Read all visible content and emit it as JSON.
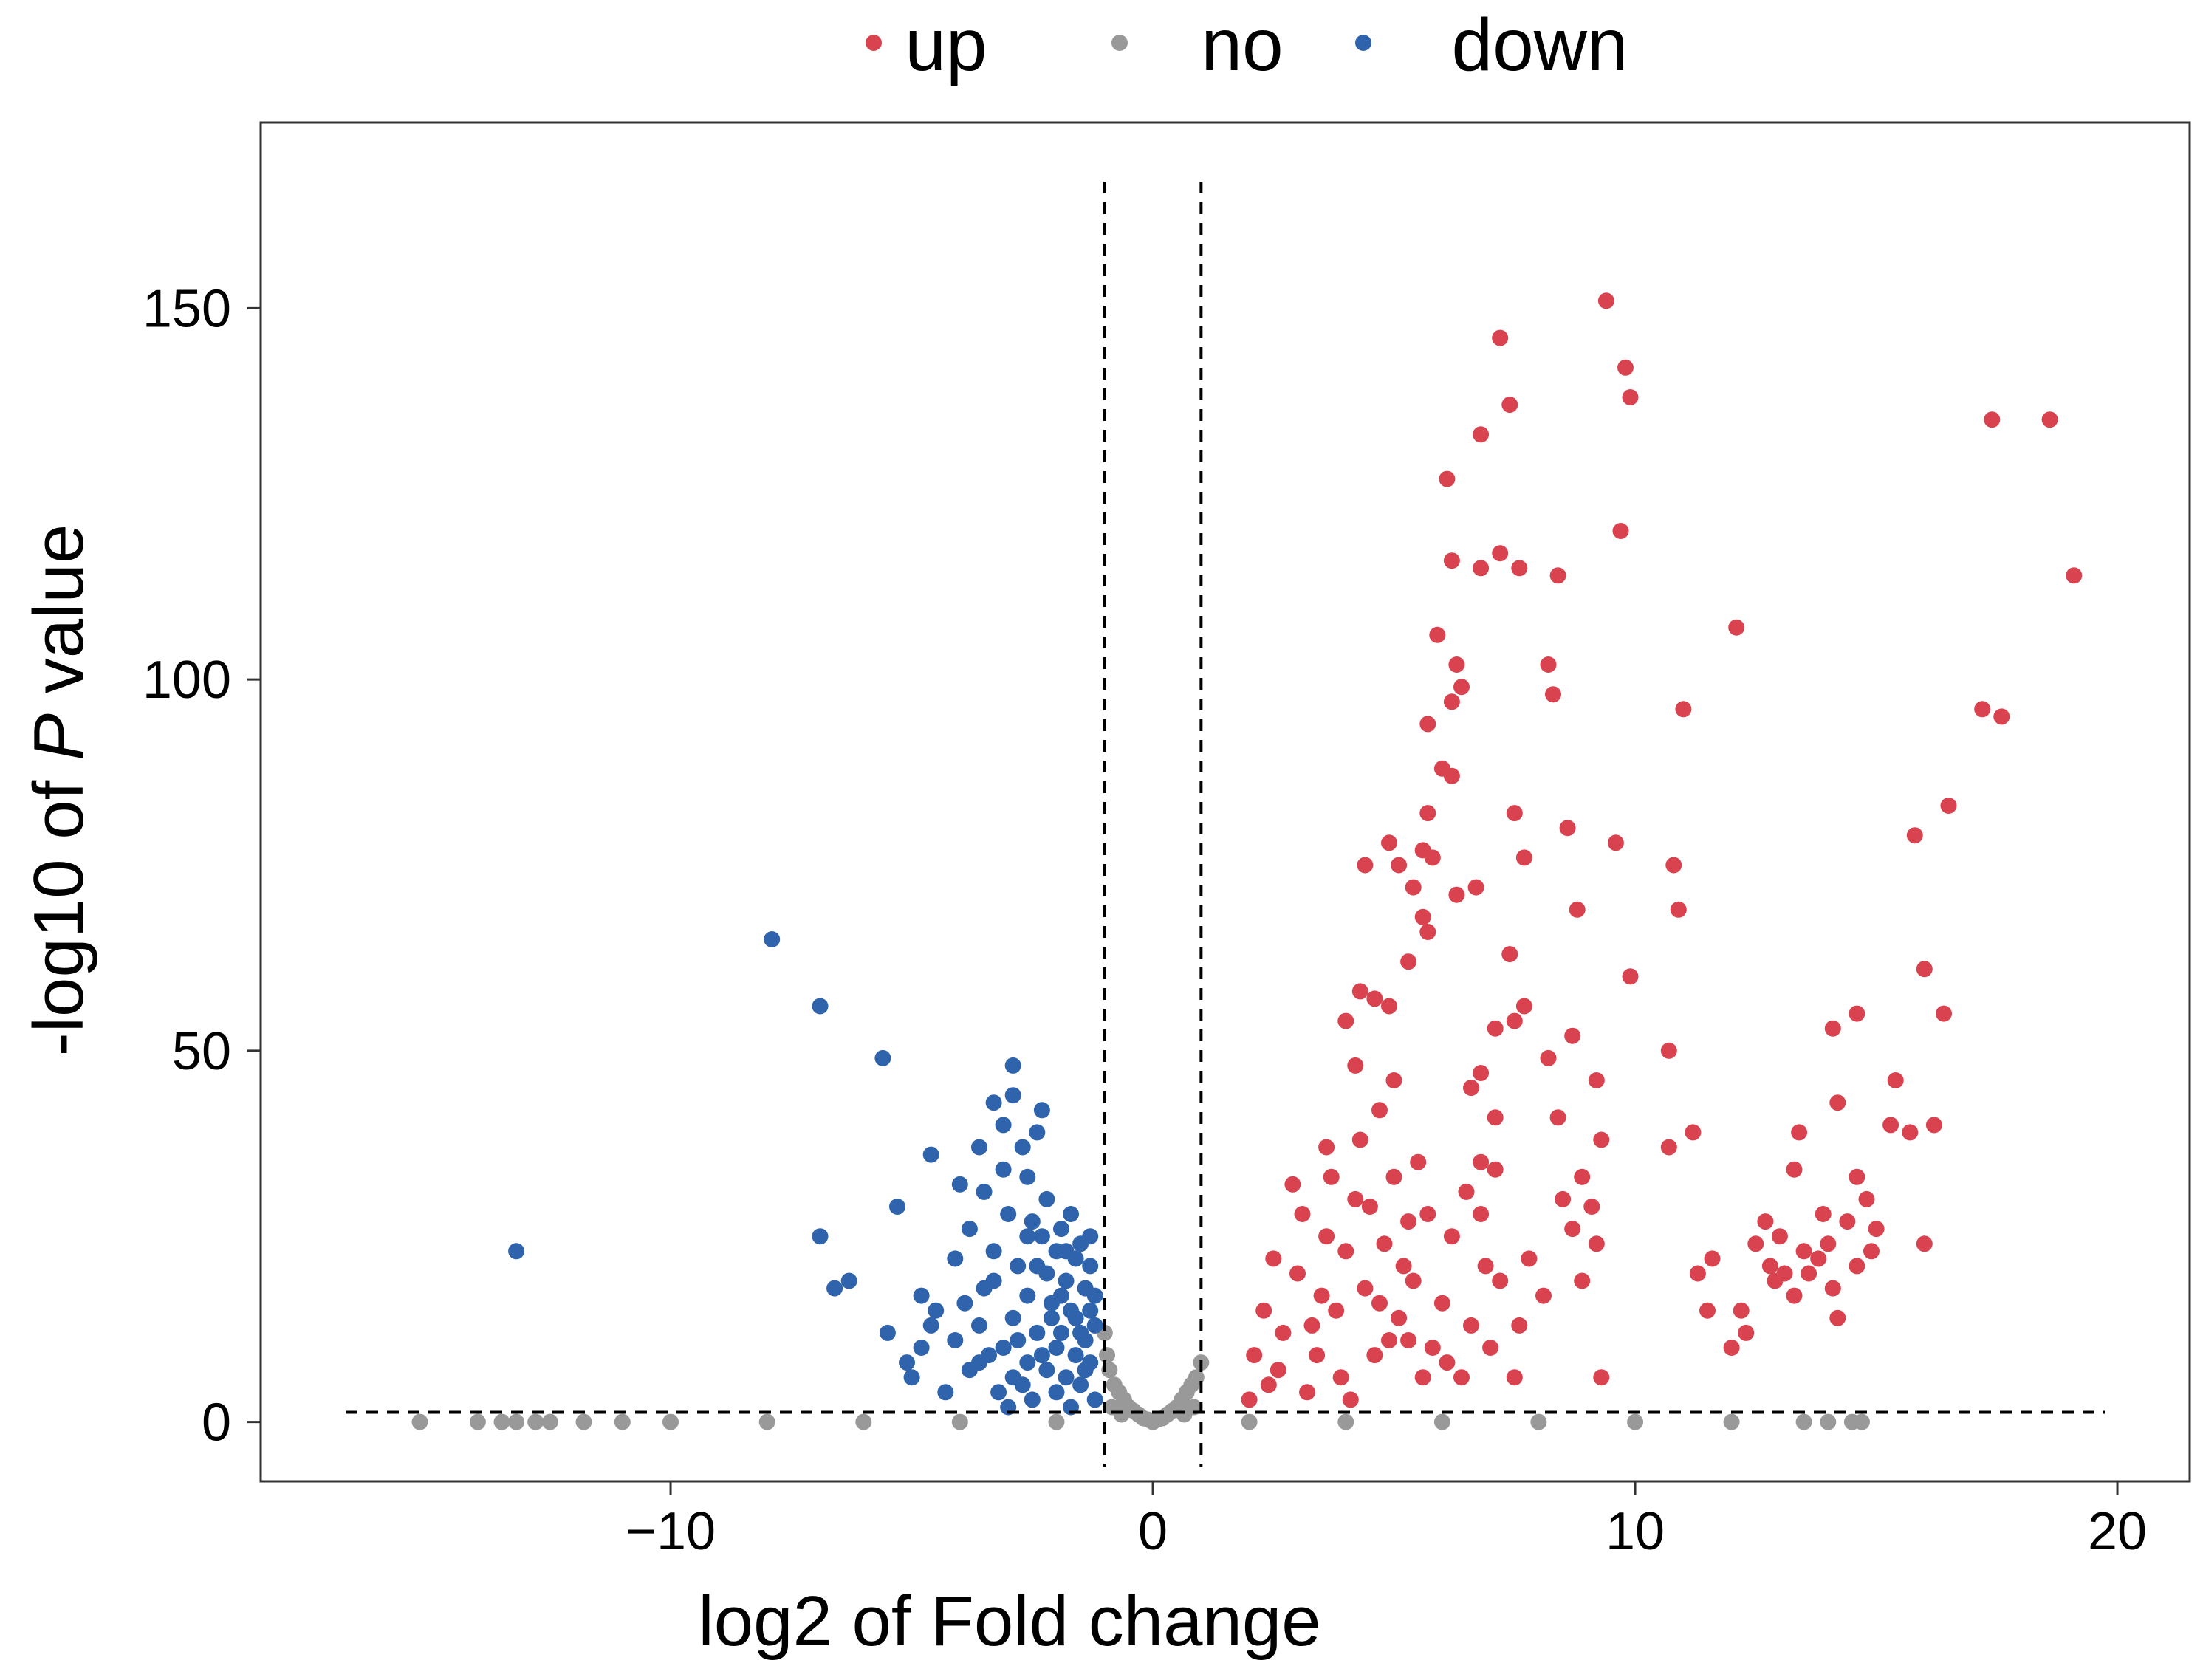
{
  "chart_data": {
    "type": "scatter",
    "xlabel": "log2 of Fold change",
    "ylabel": {
      "prefix": "-log10 of ",
      "italic": "P",
      "suffix": " value"
    },
    "xlim": [
      -18.5,
      21.5
    ],
    "ylim": [
      -8,
      175
    ],
    "x_ticks": [
      {
        "value": -10,
        "label": "−10"
      },
      {
        "value": 0,
        "label": "0"
      },
      {
        "value": 10,
        "label": "10"
      },
      {
        "value": 20,
        "label": "20"
      }
    ],
    "y_ticks": [
      {
        "value": 0,
        "label": "0"
      },
      {
        "value": 50,
        "label": "50"
      },
      {
        "value": 100,
        "label": "100"
      },
      {
        "value": 150,
        "label": "150"
      }
    ],
    "grid": false,
    "legend_position": "top",
    "thresholds": {
      "x": [
        -1,
        1
      ],
      "y": 1.3
    },
    "series": [
      {
        "name": "up",
        "color": "#d9434f",
        "points": [
          [
            9.4,
            151
          ],
          [
            7.2,
            146
          ],
          [
            9.8,
            142
          ],
          [
            9.9,
            138
          ],
          [
            7.4,
            137
          ],
          [
            17.4,
            135
          ],
          [
            18.6,
            135
          ],
          [
            6.8,
            133
          ],
          [
            6.1,
            127
          ],
          [
            9.7,
            120
          ],
          [
            7.2,
            117
          ],
          [
            6.2,
            116
          ],
          [
            6.8,
            115
          ],
          [
            7.6,
            115
          ],
          [
            8.4,
            114
          ],
          [
            19.1,
            114
          ],
          [
            12.1,
            107
          ],
          [
            5.9,
            106
          ],
          [
            6.3,
            102
          ],
          [
            8.2,
            102
          ],
          [
            6.4,
            99
          ],
          [
            8.3,
            98
          ],
          [
            6.2,
            97
          ],
          [
            11.0,
            96
          ],
          [
            17.2,
            96
          ],
          [
            17.6,
            95
          ],
          [
            5.7,
            94
          ],
          [
            6.0,
            88
          ],
          [
            6.2,
            87
          ],
          [
            16.5,
            83
          ],
          [
            5.7,
            82
          ],
          [
            7.5,
            82
          ],
          [
            8.6,
            80
          ],
          [
            15.8,
            79
          ],
          [
            4.9,
            78
          ],
          [
            9.6,
            78
          ],
          [
            5.6,
            77
          ],
          [
            5.8,
            76
          ],
          [
            7.7,
            76
          ],
          [
            4.4,
            75
          ],
          [
            5.1,
            75
          ],
          [
            10.8,
            75
          ],
          [
            5.4,
            72
          ],
          [
            6.7,
            72
          ],
          [
            6.3,
            71
          ],
          [
            10.9,
            69
          ],
          [
            8.8,
            69
          ],
          [
            5.6,
            68
          ],
          [
            5.7,
            66
          ],
          [
            7.4,
            63
          ],
          [
            5.3,
            62
          ],
          [
            16.0,
            61
          ],
          [
            9.9,
            60
          ],
          [
            4.3,
            58
          ],
          [
            4.6,
            57
          ],
          [
            7.7,
            56
          ],
          [
            4.9,
            56
          ],
          [
            16.4,
            55
          ],
          [
            14.6,
            55
          ],
          [
            7.5,
            54
          ],
          [
            4.0,
            54
          ],
          [
            7.1,
            53
          ],
          [
            14.1,
            53
          ],
          [
            8.7,
            52
          ],
          [
            10.7,
            50
          ],
          [
            8.2,
            49
          ],
          [
            4.2,
            48
          ],
          [
            6.8,
            47
          ],
          [
            5.0,
            46
          ],
          [
            15.4,
            46
          ],
          [
            9.2,
            46
          ],
          [
            6.6,
            45
          ],
          [
            14.2,
            43
          ],
          [
            4.7,
            42
          ],
          [
            7.1,
            41
          ],
          [
            8.4,
            41
          ],
          [
            15.3,
            40
          ],
          [
            16.2,
            40
          ],
          [
            11.2,
            39
          ],
          [
            15.7,
            39
          ],
          [
            13.4,
            39
          ],
          [
            9.3,
            38
          ],
          [
            10.7,
            37
          ],
          [
            3.6,
            37
          ],
          [
            5.5,
            35
          ],
          [
            6.8,
            35
          ],
          [
            13.3,
            34
          ],
          [
            7.1,
            34
          ],
          [
            8.9,
            33
          ],
          [
            14.6,
            33
          ],
          [
            2.9,
            32
          ],
          [
            6.5,
            31
          ],
          [
            8.5,
            30
          ],
          [
            14.8,
            30
          ],
          [
            9.1,
            29
          ],
          [
            4.5,
            29
          ],
          [
            6.8,
            28
          ],
          [
            13.9,
            28
          ],
          [
            5.3,
            27
          ],
          [
            12.7,
            27
          ],
          [
            14.4,
            27
          ],
          [
            8.7,
            26
          ],
          [
            15.0,
            26
          ],
          [
            13.0,
            25
          ],
          [
            14.0,
            24
          ],
          [
            9.2,
            24
          ],
          [
            12.5,
            24
          ],
          [
            16.0,
            24
          ],
          [
            13.5,
            23
          ],
          [
            14.9,
            23
          ],
          [
            11.6,
            22
          ],
          [
            13.8,
            22
          ],
          [
            14.6,
            21
          ],
          [
            12.8,
            21
          ],
          [
            13.1,
            20
          ],
          [
            11.3,
            20
          ],
          [
            13.6,
            20
          ],
          [
            8.9,
            19
          ],
          [
            12.9,
            19
          ],
          [
            14.1,
            18
          ],
          [
            13.3,
            17
          ],
          [
            12.2,
            15
          ],
          [
            11.5,
            15
          ],
          [
            14.2,
            14
          ],
          [
            12.3,
            12
          ],
          [
            12.0,
            10
          ],
          [
            9.3,
            6
          ],
          [
            7.5,
            6
          ],
          [
            2.4,
            5
          ],
          [
            3.2,
            4
          ],
          [
            4.1,
            3
          ],
          [
            5.6,
            6
          ],
          [
            6.1,
            8
          ],
          [
            3.4,
            9
          ],
          [
            4.9,
            11
          ],
          [
            2.1,
            9
          ],
          [
            2.7,
            12
          ],
          [
            3.8,
            15
          ],
          [
            4.4,
            18
          ],
          [
            5.2,
            21
          ],
          [
            6.0,
            16
          ],
          [
            6.6,
            13
          ],
          [
            7.2,
            19
          ],
          [
            7.8,
            22
          ],
          [
            8.1,
            17
          ],
          [
            2.3,
            15
          ],
          [
            3.0,
            20
          ],
          [
            3.6,
            25
          ],
          [
            4.2,
            30
          ],
          [
            4.8,
            24
          ],
          [
            5.4,
            19
          ],
          [
            6.2,
            25
          ],
          [
            6.9,
            21
          ],
          [
            2.0,
            3
          ],
          [
            2.6,
            7
          ],
          [
            3.3,
            13
          ],
          [
            3.9,
            6
          ],
          [
            4.6,
            9
          ],
          [
            5.1,
            14
          ],
          [
            5.8,
            10
          ],
          [
            6.4,
            6
          ],
          [
            7.0,
            10
          ],
          [
            7.6,
            13
          ],
          [
            3.1,
            28
          ],
          [
            3.7,
            33
          ],
          [
            4.3,
            38
          ],
          [
            5.0,
            33
          ],
          [
            5.7,
            28
          ],
          [
            2.5,
            22
          ],
          [
            3.5,
            17
          ],
          [
            4.0,
            23
          ],
          [
            4.7,
            16
          ],
          [
            5.3,
            11
          ]
        ]
      },
      {
        "name": "no",
        "color": "#999999",
        "points": [
          [
            -15.2,
            0
          ],
          [
            -14.0,
            0
          ],
          [
            -13.5,
            0
          ],
          [
            -13.2,
            0
          ],
          [
            -12.8,
            0
          ],
          [
            -12.5,
            0
          ],
          [
            -11.8,
            0
          ],
          [
            -11.0,
            0
          ],
          [
            -10.0,
            0
          ],
          [
            -8.0,
            0
          ],
          [
            -6.0,
            0
          ],
          [
            -4.0,
            0
          ],
          [
            -2.0,
            0
          ],
          [
            0,
            0
          ],
          [
            2.0,
            0
          ],
          [
            4.0,
            0
          ],
          [
            6.0,
            0
          ],
          [
            8.0,
            0
          ],
          [
            10.0,
            0
          ],
          [
            12.0,
            0
          ],
          [
            13.5,
            0
          ],
          [
            14.0,
            0
          ],
          [
            14.5,
            0
          ],
          [
            14.7,
            0
          ],
          [
            -1.0,
            12
          ],
          [
            -0.95,
            9
          ],
          [
            -0.9,
            7
          ],
          [
            -0.8,
            5
          ],
          [
            -0.7,
            4
          ],
          [
            -0.6,
            3
          ],
          [
            -0.5,
            2
          ],
          [
            -0.4,
            1.5
          ],
          [
            -0.3,
            1
          ],
          [
            -0.2,
            0.5
          ],
          [
            -0.1,
            0.3
          ],
          [
            0.1,
            0.3
          ],
          [
            0.2,
            0.5
          ],
          [
            0.3,
            1
          ],
          [
            0.4,
            1.5
          ],
          [
            0.5,
            2
          ],
          [
            0.6,
            3
          ],
          [
            0.7,
            4
          ],
          [
            0.8,
            5
          ],
          [
            0.9,
            6
          ],
          [
            1.0,
            8
          ],
          [
            -0.85,
            2
          ],
          [
            -0.65,
            1
          ],
          [
            0.65,
            1
          ],
          [
            0.85,
            2
          ]
        ]
      },
      {
        "name": "down",
        "color": "#2f64ad",
        "points": [
          [
            -7.9,
            65
          ],
          [
            -6.9,
            56
          ],
          [
            -5.6,
            49
          ],
          [
            -2.9,
            48
          ],
          [
            -13.2,
            23
          ],
          [
            -2.9,
            44
          ],
          [
            -3.3,
            43
          ],
          [
            -2.3,
            42
          ],
          [
            -3.1,
            40
          ],
          [
            -2.4,
            39
          ],
          [
            -2.7,
            37
          ],
          [
            -3.6,
            37
          ],
          [
            -4.6,
            36
          ],
          [
            -3.1,
            34
          ],
          [
            -2.6,
            33
          ],
          [
            -4.0,
            32
          ],
          [
            -3.5,
            31
          ],
          [
            -2.2,
            30
          ],
          [
            -5.3,
            29
          ],
          [
            -3.0,
            28
          ],
          [
            -1.7,
            28
          ],
          [
            -2.5,
            27
          ],
          [
            -3.8,
            26
          ],
          [
            -1.9,
            26
          ],
          [
            -6.9,
            25
          ],
          [
            -2.3,
            25
          ],
          [
            -1.5,
            24
          ],
          [
            -3.3,
            23
          ],
          [
            -2.0,
            23
          ],
          [
            -4.1,
            22
          ],
          [
            -1.6,
            22
          ],
          [
            -2.8,
            21
          ],
          [
            -1.3,
            21
          ],
          [
            -2.2,
            20
          ],
          [
            -6.3,
            19
          ],
          [
            -1.8,
            19
          ],
          [
            -6.6,
            18
          ],
          [
            -3.5,
            18
          ],
          [
            -1.4,
            18
          ],
          [
            -2.6,
            17
          ],
          [
            -4.8,
            17
          ],
          [
            -1.2,
            17
          ],
          [
            -2.1,
            16
          ],
          [
            -3.9,
            16
          ],
          [
            -1.7,
            15
          ],
          [
            -4.5,
            15
          ],
          [
            -1.3,
            15
          ],
          [
            -2.9,
            14
          ],
          [
            -1.6,
            14
          ],
          [
            -3.6,
            13
          ],
          [
            -1.2,
            13
          ],
          [
            -4.6,
            13
          ],
          [
            -2.4,
            12
          ],
          [
            -1.9,
            12
          ],
          [
            -5.5,
            12
          ],
          [
            -4.1,
            11
          ],
          [
            -1.4,
            11
          ],
          [
            -3.1,
            10
          ],
          [
            -2.0,
            10
          ],
          [
            -4.8,
            10
          ],
          [
            -1.6,
            9
          ],
          [
            -3.4,
            9
          ],
          [
            -2.6,
            8
          ],
          [
            -5.1,
            8
          ],
          [
            -1.3,
            8
          ],
          [
            -2.2,
            7
          ],
          [
            -3.8,
            7
          ],
          [
            -1.8,
            6
          ],
          [
            -5.0,
            6
          ],
          [
            -2.7,
            5
          ],
          [
            -1.5,
            5
          ],
          [
            -3.2,
            4
          ],
          [
            -2.0,
            4
          ],
          [
            -1.2,
            3
          ],
          [
            -2.5,
            3
          ],
          [
            -1.7,
            2
          ],
          [
            -2.9,
            6
          ],
          [
            -2.3,
            9
          ],
          [
            -1.9,
            17
          ],
          [
            -2.4,
            21
          ],
          [
            -1.5,
            12
          ],
          [
            -1.4,
            7
          ],
          [
            -3.0,
            2
          ],
          [
            -2.1,
            14
          ],
          [
            -1.8,
            23
          ],
          [
            -2.6,
            25
          ],
          [
            -3.3,
            19
          ],
          [
            -1.3,
            25
          ],
          [
            -2.8,
            11
          ],
          [
            -3.6,
            8
          ],
          [
            -4.3,
            4
          ]
        ]
      }
    ]
  }
}
